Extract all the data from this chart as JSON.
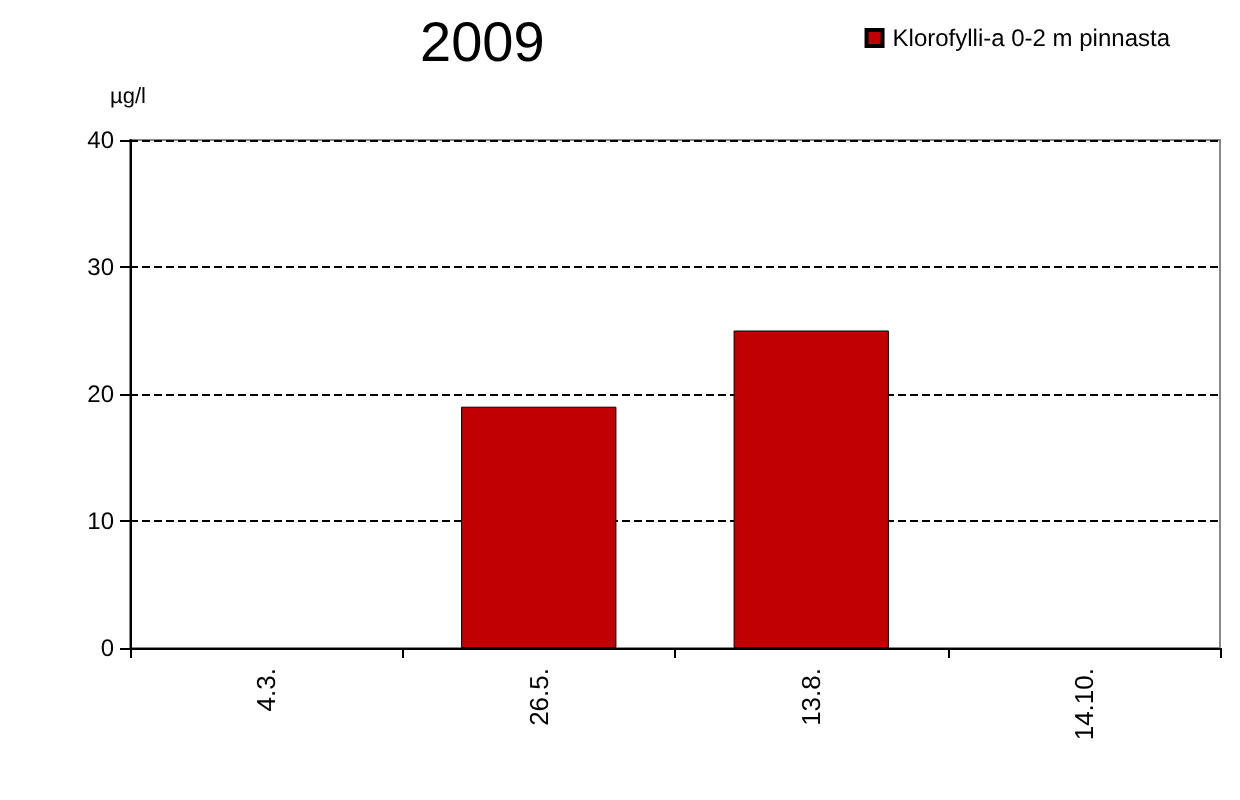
{
  "chart_data": {
    "type": "bar",
    "title": "2009",
    "ylabel": "µg/l",
    "categories": [
      "4.3.",
      "26.5.",
      "13.8.",
      "14.10."
    ],
    "series": [
      {
        "name": "Klorofylli-a 0-2 m pinnasta",
        "color": "#c00000",
        "values": [
          null,
          19,
          25,
          null
        ]
      }
    ],
    "ylim": [
      0,
      40
    ],
    "yticks": [
      0,
      10,
      20,
      30,
      40
    ],
    "grid": "y",
    "legend": "top right"
  }
}
